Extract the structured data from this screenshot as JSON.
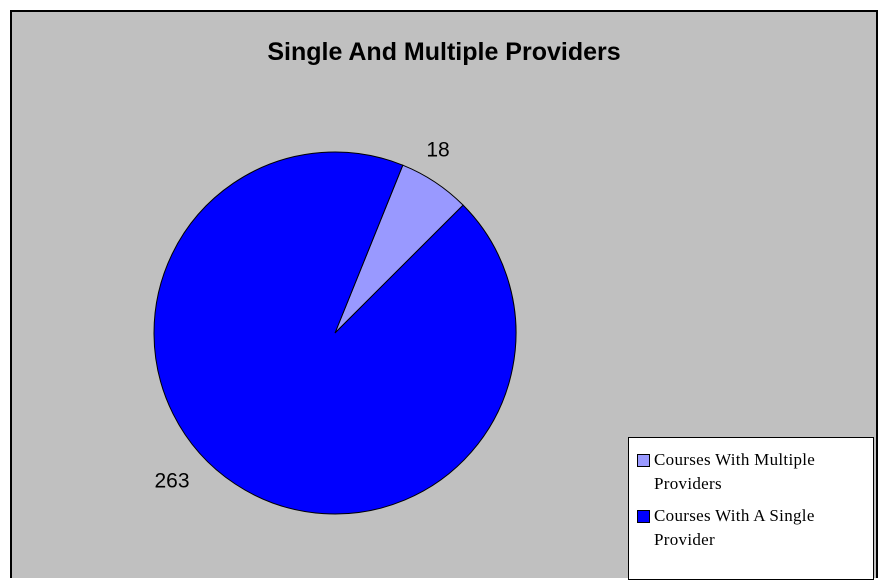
{
  "chart_data": {
    "type": "pie",
    "title": "Single And Multiple Providers",
    "categories": [
      "Courses With Multiple Providers",
      "Courses With A Single Provider"
    ],
    "values": [
      18,
      263
    ],
    "data_labels": [
      "18",
      "263"
    ],
    "colors": [
      "#9999ff",
      "#0000ff"
    ],
    "legend_position": "bottom-right"
  }
}
